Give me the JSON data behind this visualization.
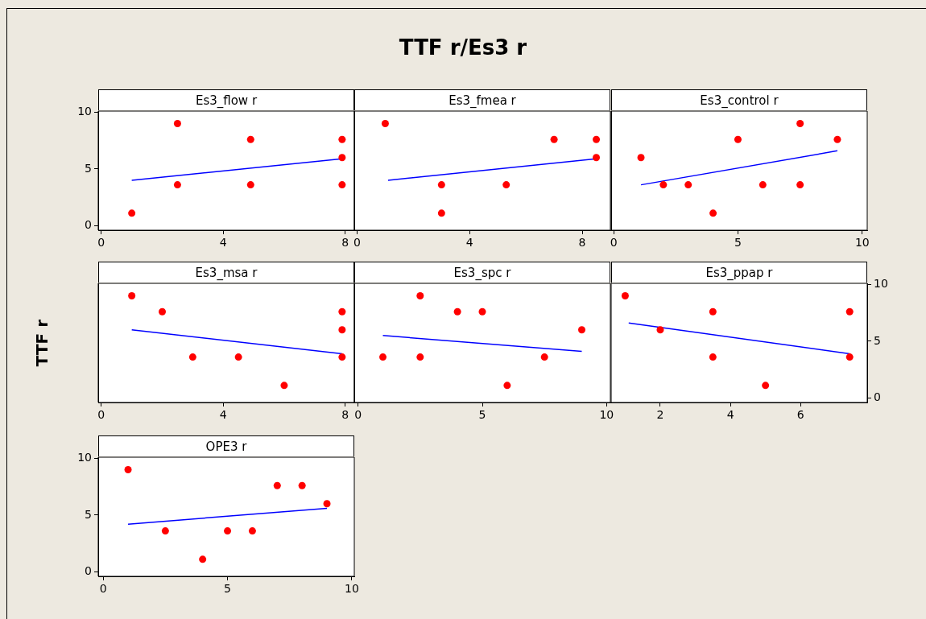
{
  "chart_data": [
    {
      "type": "scatter",
      "annotations": [
        "TTF r/Es3 r"
      ],
      "subtitle": "Es3_flow r",
      "xlim": [
        -0.1,
        8.3
      ],
      "xticks": [
        0,
        4,
        8
      ],
      "ylim": [
        -0.4,
        10.1
      ],
      "yticks": [
        0,
        5,
        10
      ],
      "grid": false,
      "marker": "circle",
      "series": [
        {
          "color": "#ff0000",
          "x": [
            1,
            2.5,
            2.5,
            4.9,
            4.9,
            7.9,
            7.9,
            7.9
          ],
          "values": [
            1.1,
            9.0,
            3.6,
            7.6,
            3.6,
            7.6,
            6.0,
            3.6
          ]
        },
        {
          "type": "line",
          "color": "#0000ff",
          "marker": "none",
          "line_style": "solid",
          "x": [
            1,
            7.9
          ],
          "values": [
            4.0,
            5.9
          ]
        }
      ]
    },
    {
      "type": "scatter",
      "subtitle": "Es3_fmea r",
      "xlim": [
        -0.1,
        9
      ],
      "xticks": [
        0,
        4,
        8
      ],
      "ylim": [
        -0.4,
        10.1
      ],
      "yticks": [
        0,
        5,
        10
      ],
      "tick_labels": "x",
      "grid": false,
      "marker": "circle",
      "series": [
        {
          "color": "#ff0000",
          "x": [
            1,
            3,
            3,
            5.3,
            7,
            8.5,
            8.5
          ],
          "values": [
            9.0,
            3.6,
            1.1,
            3.6,
            7.6,
            7.6,
            6.0
          ]
        },
        {
          "type": "line",
          "color": "#0000ff",
          "marker": "none",
          "line_style": "solid",
          "x": [
            1.1,
            8.5
          ],
          "values": [
            4.0,
            5.9
          ]
        }
      ]
    },
    {
      "type": "scatter",
      "subtitle": "Es3_control r",
      "xlim": [
        -0.1,
        10.2
      ],
      "xticks": [
        0,
        5,
        10
      ],
      "ylim": [
        -0.4,
        10.1
      ],
      "yticks": [
        0,
        5,
        10
      ],
      "tick_labels": "x",
      "grid": false,
      "marker": "circle",
      "series": [
        {
          "color": "#ff0000",
          "x": [
            1.1,
            2,
            3,
            4,
            5,
            6,
            7.5,
            7.5,
            9
          ],
          "values": [
            6.0,
            3.6,
            3.6,
            1.1,
            7.6,
            3.6,
            9.0,
            3.6,
            7.6
          ]
        },
        {
          "type": "line",
          "color": "#0000ff",
          "marker": "none",
          "line_style": "solid",
          "x": [
            1.1,
            9
          ],
          "values": [
            3.6,
            6.6
          ]
        }
      ]
    },
    {
      "type": "scatter",
      "subtitle": "Es3_msa r",
      "ylabel": "TTF r",
      "xlim": [
        -0.1,
        8.3
      ],
      "xticks": [
        0,
        4,
        8
      ],
      "ylim": [
        -0.4,
        10.1
      ],
      "yticks": [
        0,
        5,
        10
      ],
      "tick_labels": "x",
      "grid": false,
      "marker": "circle",
      "series": [
        {
          "color": "#ff0000",
          "x": [
            1,
            2,
            3,
            4.5,
            6,
            7.9,
            7.9,
            7.9
          ],
          "values": [
            9.0,
            7.6,
            3.6,
            3.6,
            1.1,
            7.6,
            6.0,
            3.6
          ]
        },
        {
          "type": "line",
          "color": "#0000ff",
          "marker": "none",
          "line_style": "solid",
          "x": [
            1,
            7.9
          ],
          "values": [
            6.0,
            3.9
          ]
        }
      ]
    },
    {
      "type": "scatter",
      "subtitle": "Es3_spc r",
      "xlim": [
        -0.15,
        10.15
      ],
      "xticks": [
        0,
        5,
        10
      ],
      "ylim": [
        -0.4,
        10.1
      ],
      "yticks": [
        0,
        5,
        10
      ],
      "tick_labels": "x",
      "grid": false,
      "marker": "circle",
      "series": [
        {
          "color": "#ff0000",
          "x": [
            1,
            2.5,
            2.5,
            4,
            5,
            6,
            7.5,
            9
          ],
          "values": [
            3.6,
            9.0,
            3.6,
            7.6,
            7.6,
            1.1,
            3.6,
            6.0
          ]
        },
        {
          "type": "line",
          "color": "#0000ff",
          "marker": "none",
          "line_style": "solid",
          "x": [
            1,
            9
          ],
          "values": [
            5.5,
            4.1
          ]
        }
      ]
    },
    {
      "type": "scatter",
      "subtitle": "Es3_ppap r",
      "xlim": [
        0.6,
        7.9
      ],
      "xticks": [
        2,
        4,
        6
      ],
      "y2lim": [
        -0.4,
        10.1
      ],
      "y2ticks": [
        0,
        5,
        10
      ],
      "grid": false,
      "marker": "circle",
      "series": [
        {
          "color": "#ff0000",
          "axis": "y2",
          "x": [
            1,
            2,
            3.5,
            3.5,
            5,
            7.4,
            7.4
          ],
          "values": [
            9.0,
            6.0,
            7.6,
            3.6,
            1.1,
            7.6,
            3.6
          ]
        },
        {
          "type": "line",
          "color": "#0000ff",
          "axis": "y2",
          "marker": "none",
          "line_style": "solid",
          "x": [
            1.1,
            7.4
          ],
          "values": [
            6.6,
            3.9
          ]
        }
      ]
    },
    {
      "type": "scatter",
      "subtitle": "OPE3 r",
      "xlim": [
        -0.2,
        10.1
      ],
      "xticks": [
        0,
        5,
        10
      ],
      "ylim": [
        -0.4,
        10.1
      ],
      "yticks": [
        0,
        5,
        10
      ],
      "grid": false,
      "marker": "circle",
      "series": [
        {
          "color": "#ff0000",
          "x": [
            1,
            2.5,
            4,
            5,
            6,
            7,
            8,
            9
          ],
          "values": [
            9.0,
            3.6,
            1.1,
            3.6,
            3.6,
            7.6,
            7.6,
            6.0
          ]
        },
        {
          "type": "line",
          "color": "#0000ff",
          "marker": "none",
          "line_style": "solid",
          "x": [
            1,
            9
          ],
          "values": [
            4.2,
            5.6
          ]
        }
      ]
    }
  ]
}
